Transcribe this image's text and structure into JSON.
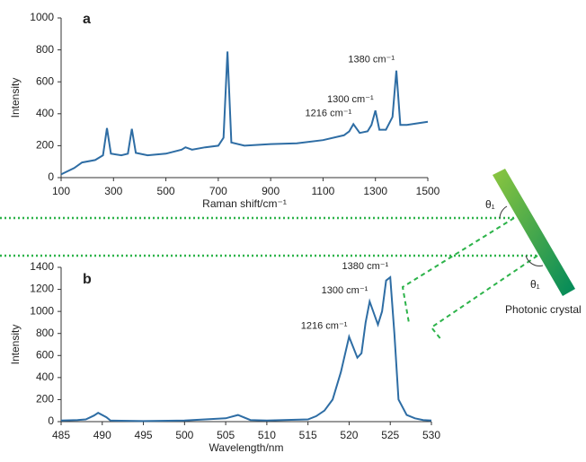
{
  "chart_data": [
    {
      "type": "line",
      "panel": "a",
      "xlabel": "Raman shift/cm⁻¹",
      "ylabel": "Intensity",
      "color": "#2e6da4",
      "x": [
        100,
        150,
        180,
        230,
        260,
        275,
        290,
        330,
        355,
        370,
        385,
        430,
        500,
        560,
        575,
        600,
        650,
        700,
        720,
        735,
        750,
        800,
        900,
        1000,
        1100,
        1180,
        1200,
        1216,
        1240,
        1270,
        1285,
        1300,
        1315,
        1340,
        1365,
        1380,
        1395,
        1420,
        1460,
        1500
      ],
      "values": [
        20,
        60,
        95,
        110,
        140,
        310,
        150,
        140,
        150,
        305,
        155,
        140,
        150,
        175,
        190,
        175,
        190,
        200,
        250,
        790,
        220,
        200,
        210,
        215,
        235,
        265,
        290,
        335,
        280,
        290,
        330,
        420,
        300,
        300,
        380,
        670,
        330,
        330,
        340,
        350
      ],
      "xlim": [
        100,
        1500
      ],
      "xticks": [
        100,
        300,
        500,
        700,
        900,
        1100,
        1300,
        1500
      ],
      "ylim": [
        0,
        1000
      ],
      "yticks": [
        0,
        200,
        400,
        600,
        800,
        1000
      ],
      "annotations": [
        {
          "text": "1216 cm⁻¹",
          "x": 1216,
          "y": 335
        },
        {
          "text": "1300 cm⁻¹",
          "x": 1300,
          "y": 420
        },
        {
          "text": "1380 cm⁻¹",
          "x": 1380,
          "y": 670
        }
      ]
    },
    {
      "type": "line",
      "panel": "b",
      "xlabel": "Wavelength/nm",
      "ylabel": "Intensity",
      "color": "#2e6da4",
      "x": [
        485,
        487,
        488,
        489,
        489.5,
        490.5,
        491,
        495,
        500,
        505,
        506.5,
        508,
        510,
        515,
        516,
        517,
        518,
        519,
        520,
        521,
        521.5,
        522,
        522.5,
        523.5,
        524,
        524.5,
        525,
        525.5,
        526,
        527,
        528,
        529,
        530
      ],
      "values": [
        10,
        15,
        20,
        55,
        80,
        40,
        10,
        5,
        10,
        30,
        60,
        15,
        10,
        20,
        50,
        100,
        200,
        450,
        770,
        580,
        620,
        900,
        1090,
        880,
        1000,
        1280,
        1310,
        800,
        200,
        60,
        30,
        15,
        10
      ],
      "xlim": [
        485,
        530
      ],
      "xticks": [
        485,
        490,
        495,
        500,
        505,
        510,
        515,
        520,
        525,
        530
      ],
      "ylim": [
        0,
        1400
      ],
      "yticks": [
        0,
        200,
        400,
        600,
        800,
        1000,
        1200,
        1400
      ],
      "annotations": [
        {
          "text": "1216 cm⁻¹",
          "x": 520,
          "y": 770
        },
        {
          "text": "1300 cm⁻¹",
          "x": 522.5,
          "y": 1090
        },
        {
          "text": "1380 cm⁻¹",
          "x": 525,
          "y": 1310
        }
      ]
    }
  ],
  "diagram": {
    "angle_labels": [
      "θ₁",
      "θ₁"
    ],
    "crystal_label": "Photonic crystal"
  }
}
